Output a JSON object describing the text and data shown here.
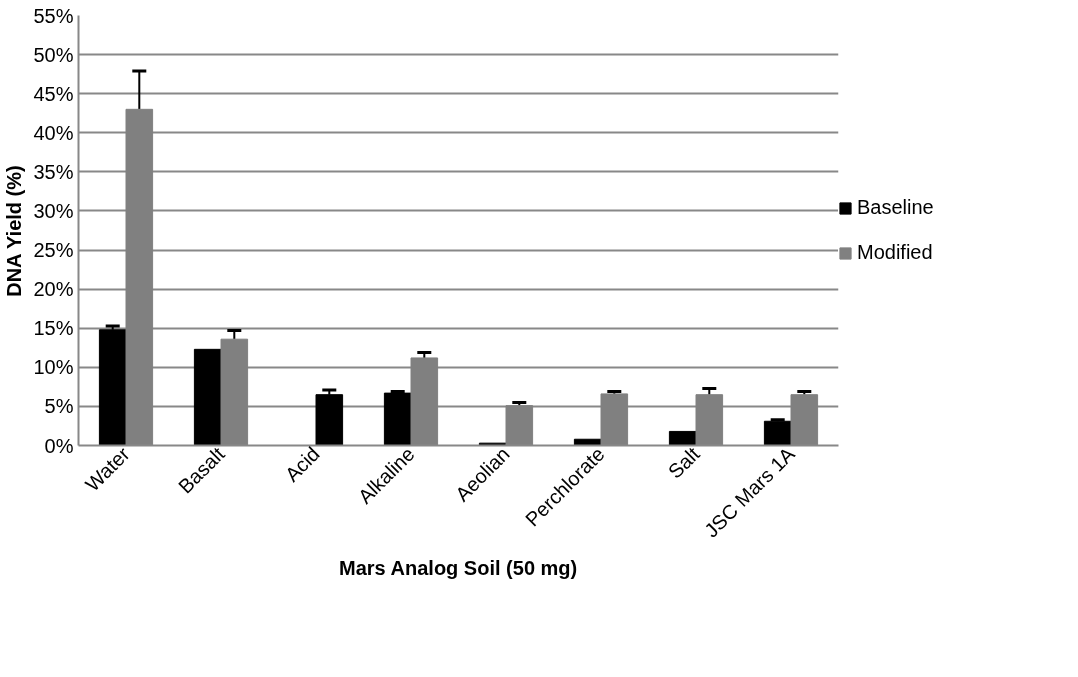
{
  "chart_data": {
    "type": "bar",
    "xlabel": "Mars Analog Soil (50 mg)",
    "ylabel": "DNA Yield (%)",
    "categories": [
      "Water",
      "Basalt",
      "Acid",
      "Alkaline",
      "Aeolian",
      "Perchlorate",
      "Salt",
      "JSC Mars 1A"
    ],
    "series": [
      {
        "name": "Baseline",
        "color": "#000000",
        "values": [
          14.8,
          12.3,
          null,
          6.7,
          0.3,
          0.8,
          1.8,
          3.1
        ],
        "errors": [
          [
            14.8,
            15.3
          ],
          null,
          null,
          [
            6.7,
            6.9
          ],
          null,
          null,
          null,
          [
            3.1,
            3.3
          ]
        ]
      },
      {
        "name": "Modified",
        "color": "#808080",
        "colors": [
          "#808080",
          "#808080",
          "#000000",
          "#808080",
          "#808080",
          "#808080",
          "#808080",
          "#808080"
        ],
        "values": [
          43.0,
          13.6,
          6.5,
          11.2,
          5.1,
          6.6,
          6.5,
          6.5
        ],
        "errors": [
          [
            43.0,
            47.9
          ],
          [
            13.6,
            14.7
          ],
          [
            6.5,
            7.1
          ],
          [
            11.2,
            11.9
          ],
          [
            5.1,
            5.5
          ],
          [
            6.6,
            6.9
          ],
          [
            6.5,
            7.3
          ],
          [
            6.5,
            6.9
          ]
        ]
      }
    ],
    "ylim": [
      0,
      55
    ],
    "yticks": [
      {
        "value": 0,
        "label": "0%"
      },
      {
        "value": 5,
        "label": "5%"
      },
      {
        "value": 10,
        "label": "10%"
      },
      {
        "value": 15,
        "label": "15%"
      },
      {
        "value": 20,
        "label": "20%"
      },
      {
        "value": 25,
        "label": "25%"
      },
      {
        "value": 30,
        "label": "30%"
      },
      {
        "value": 35,
        "label": "35%"
      },
      {
        "value": 40,
        "label": "40%"
      },
      {
        "value": 45,
        "label": "45%"
      },
      {
        "value": 50,
        "label": "50%"
      },
      {
        "value": 55,
        "label": "55%"
      }
    ],
    "grid": "y",
    "legend": "right"
  }
}
